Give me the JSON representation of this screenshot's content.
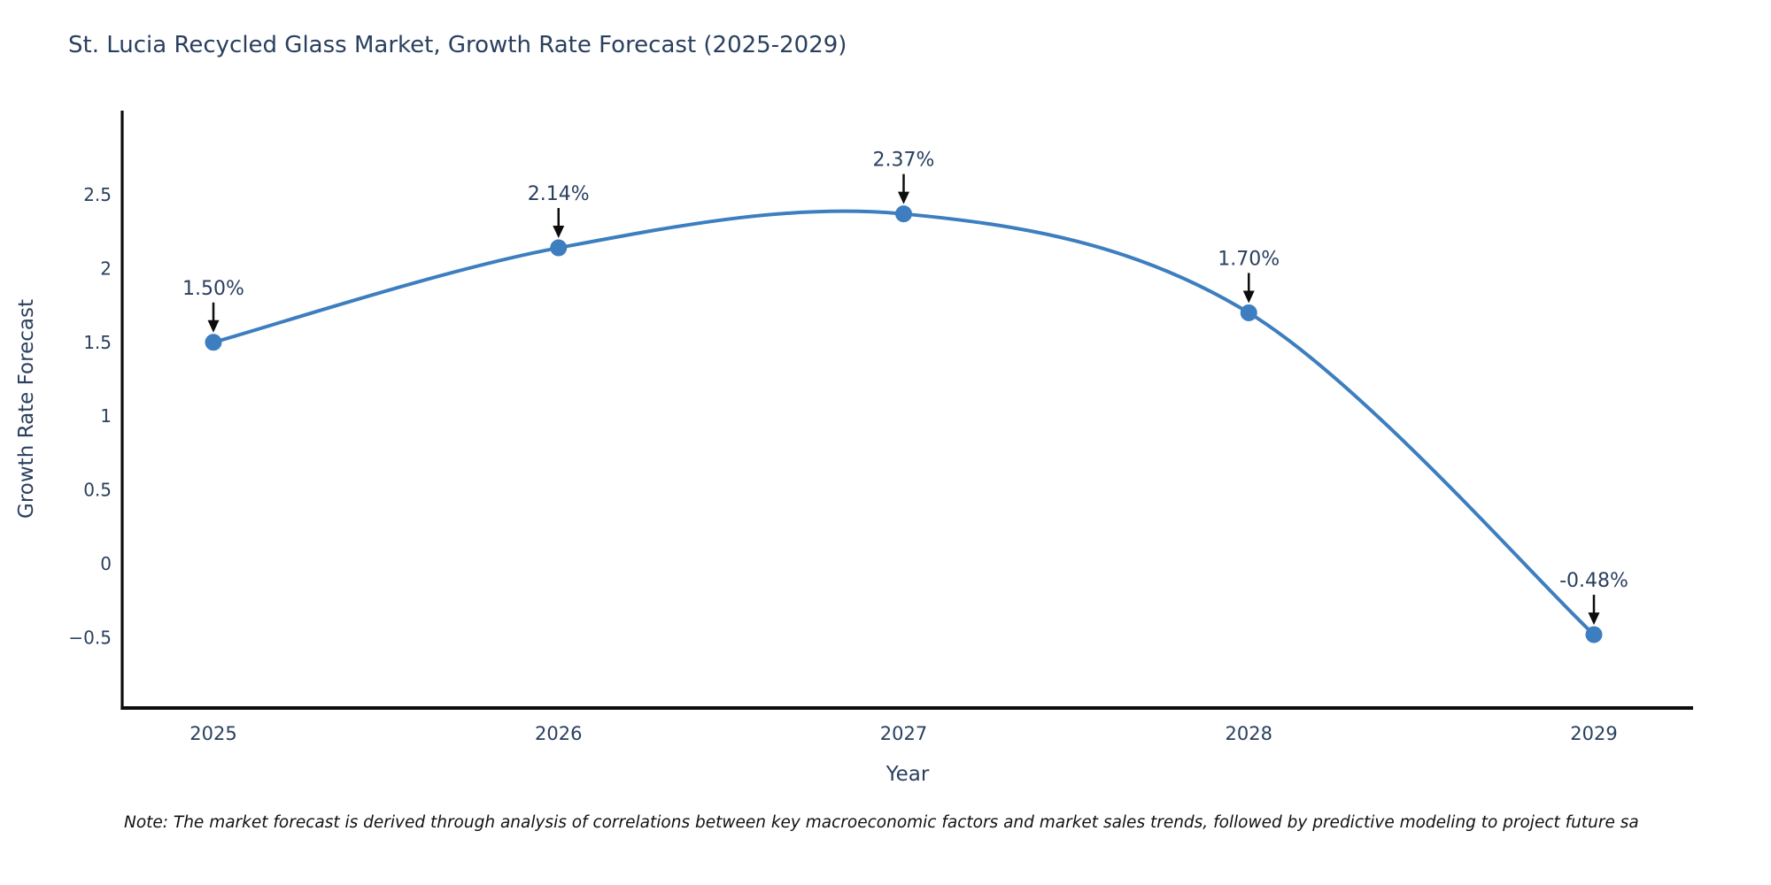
{
  "title": "St. Lucia Recycled Glass Market, Growth Rate Forecast (2025-2029)",
  "note": "Note: The market forecast is derived through analysis of correlations between key macroeconomic factors and market sales trends, followed by predictive modeling to project future sa",
  "chart_data": {
    "type": "line",
    "title": "St. Lucia Recycled Glass Market, Growth Rate Forecast (2025-2029)",
    "xlabel": "Year",
    "ylabel": "Growth Rate Forecast",
    "x": [
      2025,
      2026,
      2027,
      2028,
      2029
    ],
    "series": [
      {
        "name": "Growth Rate Forecast",
        "values": [
          1.5,
          2.14,
          2.37,
          1.7,
          -0.48
        ]
      }
    ],
    "point_labels": [
      "1.50%",
      "2.14%",
      "2.37%",
      "1.70%",
      "-0.48%"
    ],
    "xtick_labels": [
      "2025",
      "2026",
      "2027",
      "2028",
      "2029"
    ],
    "yticks": [
      2.5,
      2,
      1.5,
      1,
      0.5,
      0,
      -0.5
    ],
    "ytick_labels": [
      "2.5",
      "2",
      "1.5",
      "1",
      "0.5",
      "0",
      "−0.5"
    ],
    "ylim": [
      -0.98,
      3.07
    ],
    "line_shape": "spline",
    "grid": false,
    "legend": "none",
    "annotation_style": "arrow-down-to-point",
    "colors": {
      "line": "#3c7ebf",
      "marker": "#3c7ebf",
      "text": "#2a3f5f",
      "axis": "#0d0d0d",
      "arrow": "#0d0d0d",
      "background": "#ffffff"
    }
  }
}
